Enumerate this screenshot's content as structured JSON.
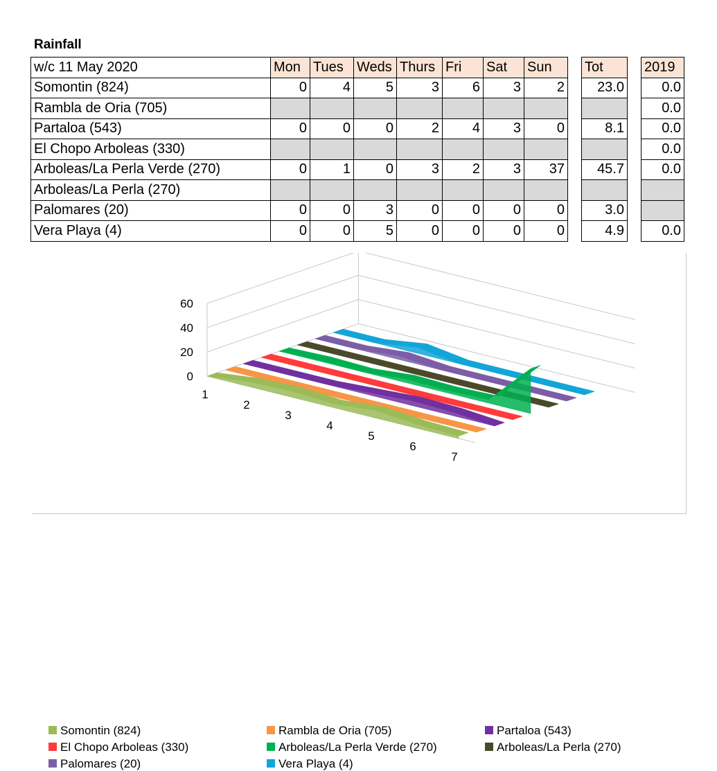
{
  "title": "Rainfall",
  "table": {
    "header": {
      "week": "w/c 11 May  2020",
      "days": [
        "Mon",
        "Tues",
        "Weds",
        "Thurs",
        "Fri",
        "Sat",
        "Sun"
      ],
      "tot": "Tot",
      "prev": "2019"
    },
    "rows": [
      {
        "site": "Somontin (824)",
        "days": [
          "0",
          "4",
          "5",
          "3",
          "6",
          "3",
          "2"
        ],
        "tot": "23.0",
        "prev": "0.0"
      },
      {
        "site": "Rambla de Oria (705)",
        "days": [
          "",
          "",
          "",
          "",
          "",
          "",
          ""
        ],
        "tot": "",
        "prev": "0.0"
      },
      {
        "site": "Partaloa (543)",
        "days": [
          "0",
          "0",
          "0",
          "2",
          "4",
          "3",
          "0"
        ],
        "tot": "8.1",
        "prev": "0.0"
      },
      {
        "site": "El Chopo Arboleas (330)",
        "days": [
          "",
          "",
          "",
          "",
          "",
          "",
          ""
        ],
        "tot": "",
        "prev": "0.0"
      },
      {
        "site": "Arboleas/La Perla Verde (270)",
        "days": [
          "0",
          "1",
          "0",
          "3",
          "2",
          "3",
          "37"
        ],
        "tot": "45.7",
        "prev": "0.0"
      },
      {
        "site": "Arboleas/La Perla (270)",
        "days": [
          "",
          "",
          "",
          "",
          "",
          "",
          ""
        ],
        "tot": "",
        "prev": ""
      },
      {
        "site": "Palomares (20)",
        "days": [
          "0",
          "0",
          "3",
          "0",
          "0",
          "0",
          "0"
        ],
        "tot": "3.0",
        "prev": ""
      },
      {
        "site": "Vera Playa (4)",
        "days": [
          "0",
          "0",
          "5",
          "0",
          "0",
          "0",
          "0"
        ],
        "tot": "4.9",
        "prev": "0.0"
      }
    ]
  },
  "chart_data": {
    "type": "area",
    "categories": [
      1,
      2,
      3,
      4,
      5,
      6,
      7
    ],
    "ylim": [
      0,
      60
    ],
    "yticks": [
      0,
      20,
      40,
      60
    ],
    "legend_position": "bottom",
    "series": [
      {
        "name": "Somontin (824)",
        "color": "#9bbb59",
        "values": [
          0,
          4,
          5,
          3,
          6,
          3,
          2
        ]
      },
      {
        "name": "Rambla de Oria (705)",
        "color": "#f79646",
        "values": [
          0,
          0,
          0,
          0,
          0,
          0,
          0
        ]
      },
      {
        "name": "Partaloa (543)",
        "color": "#7030a0",
        "values": [
          0,
          0,
          0,
          2,
          4,
          3,
          0
        ]
      },
      {
        "name": "El Chopo Arboleas (330)",
        "color": "#ff3b3b",
        "values": [
          0,
          0,
          0,
          0,
          0,
          0,
          0
        ]
      },
      {
        "name": "Arboleas/La Perla Verde (270)",
        "color": "#00b050",
        "values": [
          0,
          1,
          0,
          3,
          2,
          3,
          37
        ]
      },
      {
        "name": "Arboleas/La Perla (270)",
        "color": "#4a4a2a",
        "values": [
          0,
          0,
          0,
          0,
          0,
          0,
          0
        ]
      },
      {
        "name": "Palomares (20)",
        "color": "#7b5ea7",
        "values": [
          0,
          0,
          3,
          0,
          0,
          0,
          0
        ]
      },
      {
        "name": "Vera Playa (4)",
        "color": "#12a5d8",
        "values": [
          0,
          0,
          5,
          0,
          0,
          0,
          0
        ]
      }
    ]
  }
}
